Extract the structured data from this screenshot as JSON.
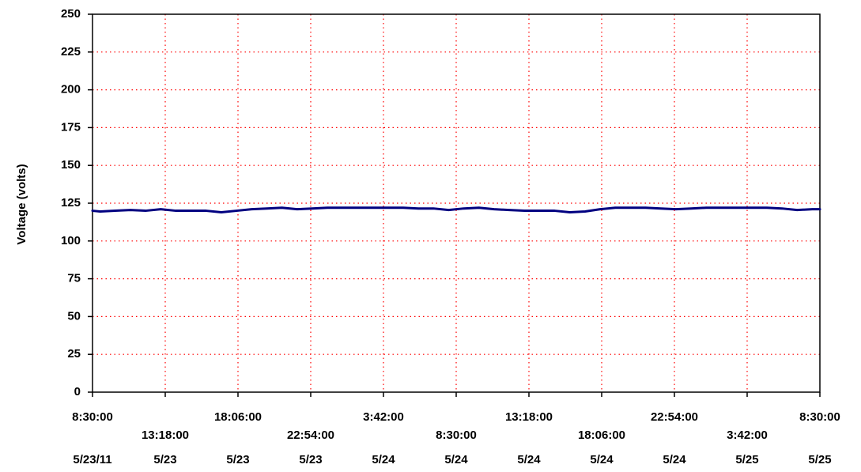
{
  "chart_data": {
    "type": "line",
    "title": "",
    "xlabel": "",
    "ylabel": "Voltage (volts)",
    "ylim": [
      0,
      250
    ],
    "yticks": [
      0,
      25,
      50,
      75,
      100,
      125,
      150,
      175,
      200,
      225,
      250
    ],
    "grid": true,
    "x_ticks": [
      {
        "time": "8:30:00",
        "date": "5/23/11"
      },
      {
        "time": "13:18:00",
        "date": "5/23"
      },
      {
        "time": "18:06:00",
        "date": "5/23"
      },
      {
        "time": "22:54:00",
        "date": "5/23"
      },
      {
        "time": "3:42:00",
        "date": "5/24"
      },
      {
        "time": "8:30:00",
        "date": "5/24"
      },
      {
        "time": "13:18:00",
        "date": "5/24"
      },
      {
        "time": "18:06:00",
        "date": "5/24"
      },
      {
        "time": "22:54:00",
        "date": "5/24"
      },
      {
        "time": "3:42:00",
        "date": "5/25"
      },
      {
        "time": "8:30:00",
        "date": "5/25"
      }
    ],
    "series": [
      {
        "name": "",
        "color": "#000080",
        "x": [
          "5/23/11 8:30:00",
          "5/23/11 9:00:00",
          "5/23/11 10:00:00",
          "5/23/11 11:00:00",
          "5/23/11 12:00:00",
          "5/23/11 13:00:00",
          "5/23/11 14:00:00",
          "5/23/11 15:00:00",
          "5/23/11 16:00:00",
          "5/23/11 17:00:00",
          "5/23/11 18:00:00",
          "5/23/11 19:00:00",
          "5/23/11 20:00:00",
          "5/23/11 21:00:00",
          "5/23/11 22:00:00",
          "5/23/11 23:00:00",
          "5/24/11 0:00:00",
          "5/24/11 1:00:00",
          "5/24/11 2:00:00",
          "5/24/11 3:00:00",
          "5/24/11 4:00:00",
          "5/24/11 5:00:00",
          "5/24/11 6:00:00",
          "5/24/11 7:00:00",
          "5/24/11 8:00:00",
          "5/24/11 9:00:00",
          "5/24/11 10:00:00",
          "5/24/11 11:00:00",
          "5/24/11 12:00:00",
          "5/24/11 13:00:00",
          "5/24/11 14:00:00",
          "5/24/11 15:00:00",
          "5/24/11 16:00:00",
          "5/24/11 17:00:00",
          "5/24/11 18:00:00",
          "5/24/11 19:00:00",
          "5/24/11 20:00:00",
          "5/24/11 21:00:00",
          "5/24/11 22:00:00",
          "5/24/11 23:00:00",
          "5/25/11 0:00:00",
          "5/25/11 1:00:00",
          "5/25/11 2:00:00",
          "5/25/11 3:00:00",
          "5/25/11 4:00:00",
          "5/25/11 5:00:00",
          "5/25/11 6:00:00",
          "5/25/11 7:00:00",
          "5/25/11 8:00:00",
          "5/25/11 8:30:00"
        ],
        "values": [
          120,
          119.5,
          120,
          120.5,
          120,
          121,
          120,
          120,
          120,
          119,
          120,
          121,
          121.5,
          122,
          121,
          121.5,
          122,
          122,
          122,
          122,
          122,
          122,
          121.5,
          121.5,
          120.5,
          121.5,
          122,
          121,
          120.5,
          120,
          120,
          120,
          119,
          119.5,
          121,
          122,
          122,
          122,
          121.5,
          121,
          121.5,
          122,
          122,
          122,
          122,
          122,
          121.5,
          120.5,
          121,
          121
        ]
      }
    ]
  }
}
